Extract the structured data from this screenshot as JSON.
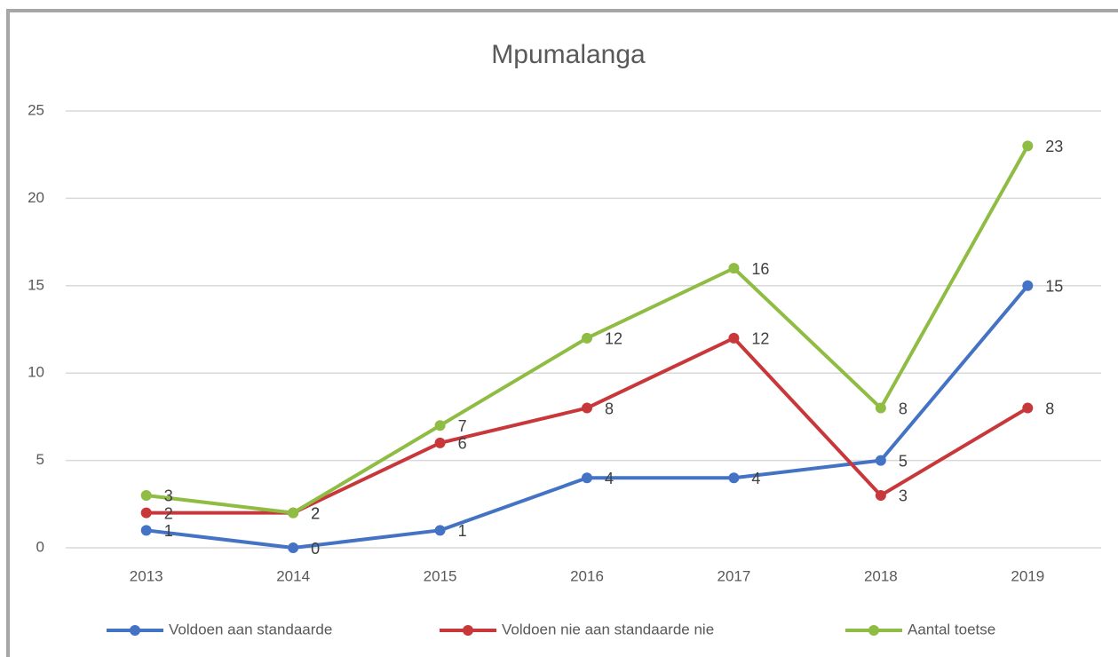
{
  "chart_data": {
    "type": "line",
    "title": "Mpumalanga",
    "categories": [
      "2013",
      "2014",
      "2015",
      "2016",
      "2017",
      "2018",
      "2019"
    ],
    "series": [
      {
        "name": "Voldoen aan standaarde",
        "color": "#4472c4",
        "values": [
          1,
          0,
          1,
          4,
          4,
          5,
          15
        ]
      },
      {
        "name": "Voldoen nie aan standaarde nie",
        "color": "#c8373a",
        "values": [
          2,
          2,
          6,
          8,
          12,
          3,
          8
        ]
      },
      {
        "name": "Aantal toetse",
        "color": "#8fbc43",
        "values": [
          3,
          2,
          7,
          12,
          16,
          8,
          23
        ]
      }
    ],
    "ylim": [
      0,
      25
    ],
    "yticks": [
      0,
      5,
      10,
      15,
      20,
      25
    ],
    "grid": true,
    "legend": "bottom"
  }
}
